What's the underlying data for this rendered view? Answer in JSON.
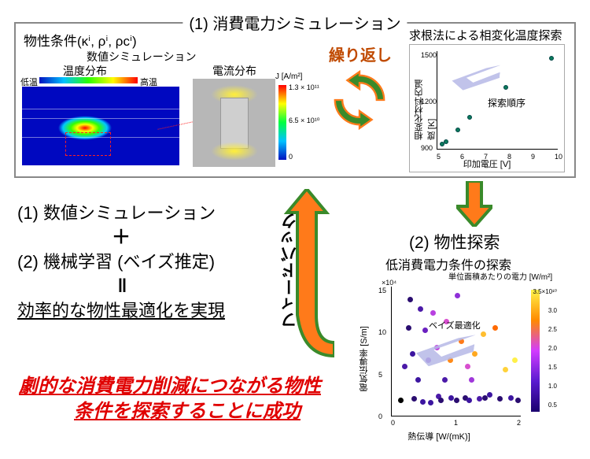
{
  "title_top": "(1) 消費電力シミュレーション",
  "phys_cond": "物性条件(κⁱ, ρⁱ, ρcⁱ)",
  "sim_label": "数値シミュレーション",
  "temp_dist": "温度分布",
  "curr_dist": "電流分布",
  "low_t": "低温",
  "high_t": "高温",
  "j_unit": "J [A/m²]",
  "j_top": "1.3 × 10¹¹",
  "j_mid": "6.5 × 10¹⁰",
  "j_bot": "0",
  "repeat": "繰り返し",
  "search_title": "求根法による相変化温度探索",
  "search_order": "探索順序",
  "chart1": {
    "ylab": "相変化材料内温度 [K]",
    "xlab": "印加電圧 [V]",
    "xticks": [
      "5",
      "6",
      "7",
      "8",
      "9",
      "10"
    ],
    "yticks": [
      "900",
      "1200",
      "1500"
    ],
    "points": [
      {
        "x": 0.02,
        "y": 0.93
      },
      {
        "x": 0.05,
        "y": 0.9
      },
      {
        "x": 0.15,
        "y": 0.78
      },
      {
        "x": 0.25,
        "y": 0.65
      },
      {
        "x": 0.55,
        "y": 0.35
      },
      {
        "x": 0.93,
        "y": 0.05
      }
    ]
  },
  "left": {
    "l1": "(1) 数値シミュレーション",
    "plus": "＋",
    "l2": "(2) 機械学習 (ベイズ推定)",
    "eq": "‖",
    "l3": "効率的な物性最適化を実現"
  },
  "feedback": "フィードバック",
  "red1": "劇的な消費電力削減につながる物性",
  "red2": "条件を探索することに成功",
  "sec2_title": "(2) 物性探索",
  "sec2_sub": "低消費電力条件の探索",
  "cb_title": "単位面積あたりの電力 [W/m²]",
  "bayes": "ベイズ最適化",
  "chart2": {
    "ylab": "電気伝導率 [S/m]",
    "xlab": "熱伝導 [W/(mK)]",
    "yexp": "×10⁴",
    "xticks": [
      "0",
      "1",
      "2"
    ],
    "yticks": [
      "0",
      "5",
      "10",
      "15"
    ],
    "cb_ticks": [
      "3.5×10¹⁰",
      "3.0",
      "2.5",
      "2.0",
      "1.5",
      "1.0",
      "0.5"
    ],
    "points": [
      {
        "x": 0.08,
        "y": 0.6,
        "c": "#4b1aa8"
      },
      {
        "x": 0.12,
        "y": 0.08,
        "c": "#2a0d70"
      },
      {
        "x": 0.15,
        "y": 0.85,
        "c": "#2a0d70"
      },
      {
        "x": 0.18,
        "y": 0.7,
        "c": "#3c15a0"
      },
      {
        "x": 0.2,
        "y": 0.15,
        "c": "#4b1aa8"
      },
      {
        "x": 0.22,
        "y": 0.87,
        "c": "#3c15a0"
      },
      {
        "x": 0.26,
        "y": 0.55,
        "c": "#7a28d0"
      },
      {
        "x": 0.28,
        "y": 0.88,
        "c": "#3c15a0"
      },
      {
        "x": 0.3,
        "y": 0.18,
        "c": "#b840e0"
      },
      {
        "x": 0.34,
        "y": 0.83,
        "c": "#4b1aa8"
      },
      {
        "x": 0.36,
        "y": 0.86,
        "c": "#2a0d70"
      },
      {
        "x": 0.4,
        "y": 0.25,
        "c": "#d84fcf"
      },
      {
        "x": 0.44,
        "y": 0.84,
        "c": "#3c15a0"
      },
      {
        "x": 0.48,
        "y": 0.86,
        "c": "#2a0d70"
      },
      {
        "x": 0.52,
        "y": 0.4,
        "c": "#ff7a18"
      },
      {
        "x": 0.55,
        "y": 0.84,
        "c": "#2a0d70"
      },
      {
        "x": 0.58,
        "y": 0.86,
        "c": "#3c15a0"
      },
      {
        "x": 0.62,
        "y": 0.5,
        "c": "#ffa820"
      },
      {
        "x": 0.66,
        "y": 0.85,
        "c": "#4b1aa8"
      },
      {
        "x": 0.7,
        "y": 0.84,
        "c": "#2a0d70"
      },
      {
        "x": 0.74,
        "y": 0.82,
        "c": "#3c15a0"
      },
      {
        "x": 0.78,
        "y": 0.3,
        "c": "#ff6a00"
      },
      {
        "x": 0.82,
        "y": 0.85,
        "c": "#2a0d70"
      },
      {
        "x": 0.86,
        "y": 0.62,
        "c": "#ffd23a"
      },
      {
        "x": 0.9,
        "y": 0.84,
        "c": "#3c15a0"
      },
      {
        "x": 0.93,
        "y": 0.55,
        "c": "#fff04a"
      },
      {
        "x": 0.96,
        "y": 0.86,
        "c": "#2a0d70"
      },
      {
        "x": 0.43,
        "y": 0.55,
        "c": "#ff8a18"
      },
      {
        "x": 0.05,
        "y": 0.86,
        "c": "#000"
      },
      {
        "x": 0.49,
        "y": 0.05,
        "c": "#8f30d8"
      },
      {
        "x": 0.6,
        "y": 0.7,
        "c": "#a038da"
      },
      {
        "x": 0.33,
        "y": 0.45,
        "c": "#c045e0"
      },
      {
        "x": 0.24,
        "y": 0.32,
        "c": "#6a20c0"
      },
      {
        "x": 0.14,
        "y": 0.5,
        "c": "#3c15a0"
      },
      {
        "x": 0.39,
        "y": 0.7,
        "c": "#4b1aa8"
      },
      {
        "x": 0.69,
        "y": 0.35,
        "c": "#ffbe30"
      },
      {
        "x": 0.11,
        "y": 0.3,
        "c": "#2a0d70"
      },
      {
        "x": 0.57,
        "y": 0.6,
        "c": "#d84fcf"
      }
    ]
  },
  "arrow_fill": "#ff7a1a",
  "arrow_stroke": "#3a8a2a"
}
